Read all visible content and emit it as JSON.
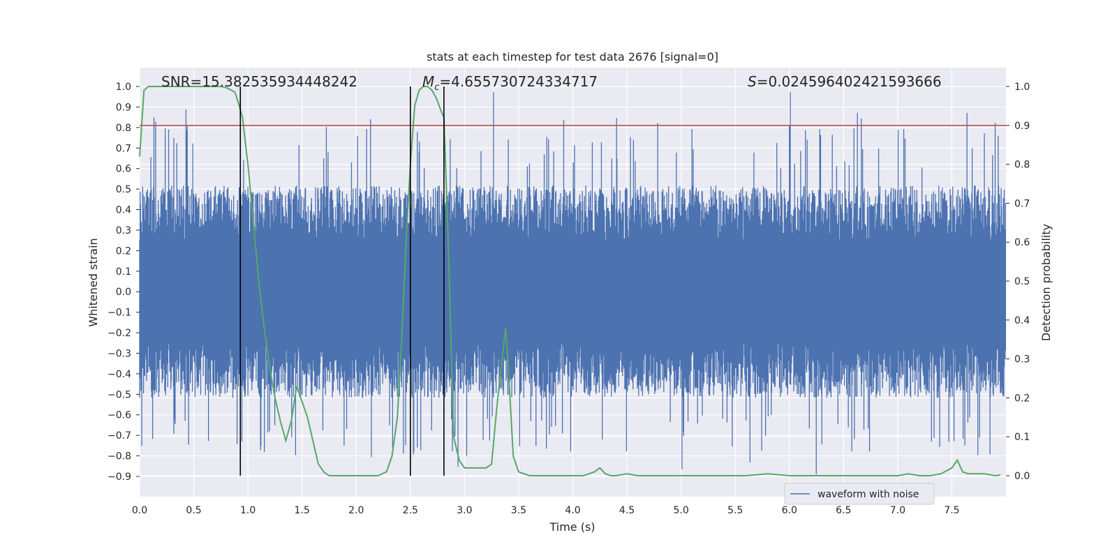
{
  "chart_data": {
    "type": "line",
    "title": "stats at each timestep for test data 2676 [signal=0]",
    "xlabel": "Time (s)",
    "ylabel_left": "Whitened strain",
    "ylabel_right": "Detection probability",
    "xlim": [
      0.0,
      8.0
    ],
    "ylim_left": [
      -0.95,
      1.04
    ],
    "ylim_right": [
      -0.05,
      1.04
    ],
    "x_ticks": [
      0.0,
      0.5,
      1.0,
      1.5,
      2.0,
      2.5,
      3.0,
      3.5,
      4.0,
      4.5,
      5.0,
      5.5,
      6.0,
      6.5,
      7.0,
      7.5
    ],
    "x_tick_labels": [
      "0.0",
      "0.5",
      "1.0",
      "1.5",
      "2.0",
      "2.5",
      "3.0",
      "3.5",
      "4.0",
      "4.5",
      "5.0",
      "5.5",
      "6.0",
      "6.5",
      "7.0",
      "7.5"
    ],
    "left_ticks": [
      1.0,
      0.9,
      0.8,
      0.7,
      0.6,
      0.5,
      0.4,
      0.3,
      0.2,
      0.1,
      0.0,
      -0.1,
      -0.2,
      -0.3,
      -0.4,
      -0.5,
      -0.6,
      -0.7,
      -0.8,
      -0.9
    ],
    "left_tick_labels": [
      "1.0",
      "0.9",
      "0.8",
      "0.7",
      "0.6",
      "0.5",
      "0.4",
      "0.3",
      "0.2",
      "0.1",
      "0.0",
      "−0.1",
      "−0.2",
      "−0.3",
      "−0.4",
      "−0.5",
      "−0.6",
      "−0.7",
      "−0.8",
      "−0.9"
    ],
    "right_ticks": [
      1.0,
      0.9,
      0.8,
      0.7,
      0.6,
      0.5,
      0.4,
      0.3,
      0.2,
      0.1,
      0.0
    ],
    "right_tick_labels": [
      "1.0",
      "0.9",
      "0.8",
      "0.7",
      "0.6",
      "0.5",
      "0.4",
      "0.3",
      "0.2",
      "0.1",
      "0.0"
    ],
    "grid": true,
    "annotations": {
      "snr": "SNR=15.382535934448242",
      "mc_symbol": "M",
      "mc_sub": "c",
      "mc_value": "=4.655730724334717",
      "s_symbol": "S",
      "s_value": "=0.024596402421593666"
    },
    "threshold": {
      "axis": "right",
      "value": 0.9,
      "color": "#c44e52"
    },
    "vertical_lines": [
      0.93,
      2.5,
      2.81
    ],
    "colors": {
      "waveform": "#4c72b0",
      "probability": "#55a868",
      "plot_background": "#eaeaf2",
      "grid": "#ffffff",
      "vline": "#000000"
    },
    "series": [
      {
        "name": "waveform with noise",
        "axis": "left",
        "envelope": {
          "upper_typical": 0.45,
          "lower_typical": -0.45,
          "upper_peak": 1.0,
          "lower_peak": -0.9
        }
      },
      {
        "axis": "right",
        "x": [
          0.0,
          0.04,
          0.08,
          0.12,
          0.2,
          0.3,
          0.4,
          0.5,
          0.6,
          0.7,
          0.75,
          0.8,
          0.85,
          0.88,
          0.91,
          0.95,
          1.0,
          1.05,
          1.1,
          1.15,
          1.2,
          1.25,
          1.3,
          1.35,
          1.4,
          1.45,
          1.5,
          1.55,
          1.6,
          1.65,
          1.7,
          1.75,
          1.8,
          1.9,
          2.0,
          2.1,
          2.2,
          2.28,
          2.33,
          2.38,
          2.42,
          2.46,
          2.5,
          2.54,
          2.58,
          2.62,
          2.66,
          2.7,
          2.74,
          2.78,
          2.81,
          2.85,
          2.9,
          2.95,
          3.0,
          3.05,
          3.1,
          3.2,
          3.25,
          3.3,
          3.38,
          3.4,
          3.45,
          3.5,
          3.6,
          3.7,
          3.8,
          3.9,
          4.0,
          4.1,
          4.15,
          4.2,
          4.25,
          4.3,
          4.35,
          4.4,
          4.5,
          4.6,
          4.7,
          4.8,
          4.9,
          5.0,
          5.2,
          5.4,
          5.6,
          5.8,
          6.0,
          6.2,
          6.4,
          6.6,
          6.8,
          7.0,
          7.1,
          7.2,
          7.3,
          7.4,
          7.5,
          7.55,
          7.6,
          7.65,
          7.7,
          7.8,
          7.9,
          7.95
        ],
        "y": [
          0.82,
          0.99,
          1.0,
          1.0,
          1.0,
          1.0,
          1.0,
          1.0,
          1.0,
          1.0,
          1.0,
          0.997,
          0.99,
          0.985,
          0.96,
          0.92,
          0.8,
          0.65,
          0.5,
          0.38,
          0.28,
          0.2,
          0.14,
          0.09,
          0.14,
          0.23,
          0.19,
          0.15,
          0.09,
          0.03,
          0.01,
          0.0,
          0.0,
          0.0,
          0.0,
          0.0,
          0.0,
          0.01,
          0.05,
          0.15,
          0.35,
          0.6,
          0.8,
          0.95,
          0.99,
          1.0,
          1.0,
          0.99,
          0.97,
          0.94,
          0.92,
          0.6,
          0.1,
          0.04,
          0.02,
          0.02,
          0.02,
          0.02,
          0.03,
          0.18,
          0.38,
          0.3,
          0.05,
          0.01,
          0.0,
          0.0,
          0.0,
          0.0,
          0.0,
          0.0,
          0.005,
          0.01,
          0.02,
          0.005,
          0.0,
          0.0,
          0.005,
          0.0,
          0.0,
          0.0,
          0.0,
          0.0,
          0.0,
          0.0,
          0.0,
          0.005,
          0.0,
          0.0,
          0.0,
          0.0,
          0.0,
          0.0,
          0.005,
          0.0,
          0.0,
          0.005,
          0.02,
          0.04,
          0.01,
          0.005,
          0.005,
          0.005,
          0.0,
          0.002
        ]
      }
    ],
    "legend": {
      "placement": "bottom-right",
      "entries": [
        "waveform with noise"
      ]
    }
  }
}
